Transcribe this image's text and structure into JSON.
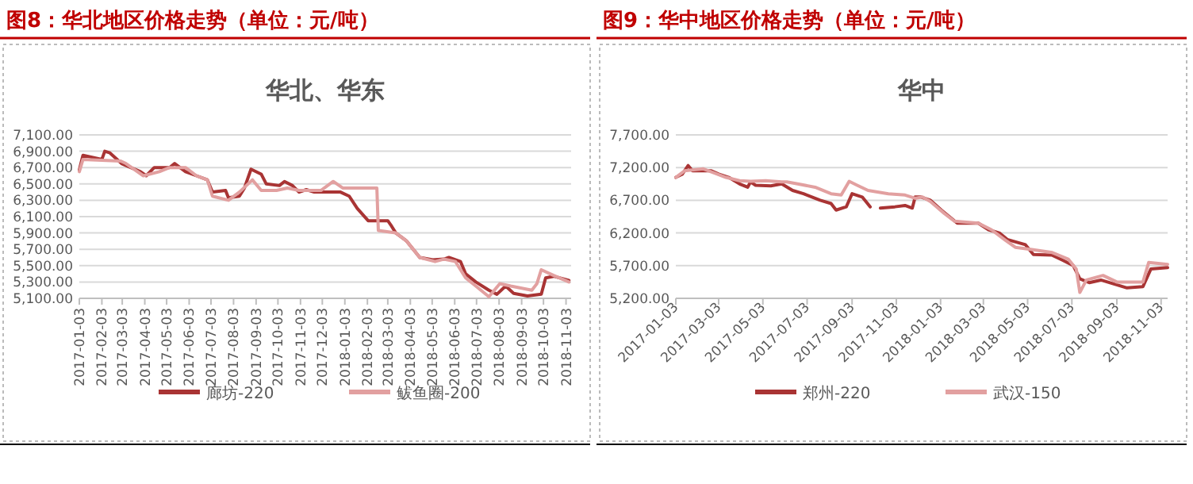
{
  "chart_data": [
    {
      "type": "line",
      "title": "图8：华北地区价格走势（单位：元/吨）",
      "subtitle": "华北、华东",
      "legend": "bottom",
      "grid": "y",
      "xlim": [
        "2017-01-03",
        "2018-11-10"
      ],
      "ylim": [
        5100,
        7100
      ],
      "yticks": [
        {
          "value": 5100,
          "label": "5,100.00"
        },
        {
          "value": 5300,
          "label": "5,300.00"
        },
        {
          "value": 5500,
          "label": "5,500.00"
        },
        {
          "value": 5700,
          "label": "5,700.00"
        },
        {
          "value": 5900,
          "label": "5,900.00"
        },
        {
          "value": 6100,
          "label": "6,100.00"
        },
        {
          "value": 6300,
          "label": "6,300.00"
        },
        {
          "value": 6500,
          "label": "6,500.00"
        },
        {
          "value": 6700,
          "label": "6,700.00"
        },
        {
          "value": 6900,
          "label": "6,900.00"
        },
        {
          "value": 7100,
          "label": "7,100.00"
        }
      ],
      "xticks": [
        "2017-01-03",
        "2017-02-03",
        "2017-03-03",
        "2017-04-03",
        "2017-05-03",
        "2017-06-03",
        "2017-07-03",
        "2017-08-03",
        "2017-09-03",
        "2017-10-03",
        "2017-11-03",
        "2017-12-03",
        "2018-01-03",
        "2018-02-03",
        "2018-03-03",
        "2018-04-03",
        "2018-05-03",
        "2018-06-03",
        "2018-07-03",
        "2018-08-03",
        "2018-09-03",
        "2018-10-03",
        "2018-11-03"
      ],
      "series": [
        {
          "name": "廊坊-220",
          "color": "#a93434",
          "x": [
            "2017-01-03",
            "2017-01-08",
            "2017-02-03",
            "2017-02-07",
            "2017-02-14",
            "2017-03-02",
            "2017-03-28",
            "2017-04-05",
            "2017-04-16",
            "2017-05-07",
            "2017-05-14",
            "2017-05-29",
            "2017-06-13",
            "2017-06-28",
            "2017-07-05",
            "2017-07-23",
            "2017-07-27",
            "2017-08-11",
            "2017-08-18",
            "2017-08-27",
            "2017-09-10",
            "2017-09-17",
            "2017-10-05",
            "2017-10-12",
            "2017-10-23",
            "2017-11-01",
            "2017-11-11",
            "2017-11-22",
            "2017-12-28",
            "2018-01-09",
            "2018-01-20",
            "2018-02-04",
            "2018-03-03",
            "2018-03-07",
            "2018-03-14",
            "2018-03-29",
            "2018-04-16",
            "2018-05-04",
            "2018-05-19",
            "2018-05-26",
            "2018-06-11",
            "2018-06-18",
            "2018-07-02",
            "2018-07-20",
            "2018-07-31",
            "2018-08-12",
            "2018-08-23",
            "2018-09-11",
            "2018-09-30",
            "2018-10-06",
            "2018-10-17",
            "2018-11-03",
            "2018-11-07"
          ],
          "values": [
            6670,
            6850,
            6800,
            6900,
            6880,
            6750,
            6650,
            6600,
            6700,
            6700,
            6750,
            6650,
            6600,
            6550,
            6400,
            6420,
            6330,
            6350,
            6450,
            6680,
            6620,
            6500,
            6480,
            6530,
            6480,
            6400,
            6430,
            6400,
            6400,
            6350,
            6200,
            6050,
            6050,
            6000,
            5900,
            5800,
            5600,
            5570,
            5580,
            5600,
            5550,
            5400,
            5300,
            5200,
            5150,
            5250,
            5160,
            5130,
            5150,
            5350,
            5370,
            5330,
            5320
          ]
        },
        {
          "name": "鲅鱼圈-200",
          "color": "#e2a0a0",
          "x": [
            "2017-01-03",
            "2017-01-08",
            "2017-03-01",
            "2017-03-08",
            "2017-04-01",
            "2017-04-23",
            "2017-05-07",
            "2017-05-29",
            "2017-06-13",
            "2017-06-28",
            "2017-07-05",
            "2017-07-27",
            "2017-08-11",
            "2017-08-29",
            "2017-09-10",
            "2017-10-01",
            "2017-10-16",
            "2017-11-01",
            "2017-12-01",
            "2017-12-18",
            "2017-12-31",
            "2018-02-16",
            "2018-02-18",
            "2018-03-14",
            "2018-03-29",
            "2018-04-16",
            "2018-05-07",
            "2018-05-19",
            "2018-06-04",
            "2018-06-18",
            "2018-07-02",
            "2018-07-20",
            "2018-08-04",
            "2018-08-19",
            "2018-09-17",
            "2018-09-24",
            "2018-09-30",
            "2018-10-17",
            "2018-11-07"
          ],
          "values": [
            6650,
            6800,
            6780,
            6750,
            6600,
            6650,
            6700,
            6700,
            6600,
            6550,
            6350,
            6300,
            6400,
            6550,
            6420,
            6420,
            6450,
            6420,
            6420,
            6530,
            6450,
            6450,
            5930,
            5900,
            5800,
            5600,
            5550,
            5580,
            5550,
            5350,
            5250,
            5120,
            5280,
            5250,
            5200,
            5280,
            5450,
            5380,
            5300
          ]
        }
      ]
    },
    {
      "type": "line",
      "title": "图9：华中地区价格走势（单位：元/吨）",
      "subtitle": "华中",
      "legend": "bottom",
      "grid": "y",
      "xlim": [
        "2017-01-03",
        "2018-11-12"
      ],
      "ylim": [
        5200,
        7700
      ],
      "yticks": [
        {
          "value": 5200,
          "label": "5,200.00"
        },
        {
          "value": 5700,
          "label": "5,700.00"
        },
        {
          "value": 6200,
          "label": "6,200.00"
        },
        {
          "value": 6700,
          "label": "6,700.00"
        },
        {
          "value": 7200,
          "label": "7,200.00"
        },
        {
          "value": 7700,
          "label": "7,700.00"
        }
      ],
      "xticks": [
        "2017-01-03",
        "2017-03-03",
        "2017-05-03",
        "2017-07-03",
        "2017-09-03",
        "2017-11-03",
        "2018-01-03",
        "2018-03-03",
        "2018-05-03",
        "2018-07-03",
        "2018-09-03",
        "2018-11-03"
      ],
      "series": [
        {
          "name": "郑州-220",
          "color": "#a93434",
          "x": [
            "2017-01-03",
            "2017-01-12",
            "2017-01-20",
            "2017-01-26",
            "2017-02-21",
            "2017-03-03",
            "2017-03-17",
            "2017-04-01",
            "2017-04-12",
            "2017-04-16",
            "2017-04-23",
            "2017-05-14",
            "2017-05-29",
            "2017-06-13",
            "2017-06-28",
            "2017-07-21",
            "2017-08-05",
            "2017-08-12",
            "2017-08-26",
            "2017-09-03",
            "2017-09-17",
            "2017-09-28",
            "2017-10-05",
            "2017-10-12",
            "2017-11-01",
            "2017-11-15",
            "2017-11-25",
            "2017-11-29",
            "2017-12-07",
            "2017-12-20",
            "2018-01-04",
            "2018-01-15",
            "2018-01-26",
            "2018-02-24",
            "2018-03-10",
            "2018-03-25",
            "2018-04-05",
            "2018-04-30",
            "2018-05-11",
            "2018-06-06",
            "2018-06-21",
            "2018-07-05",
            "2018-07-14",
            "2018-07-27",
            "2018-08-12",
            "2018-08-30",
            "2018-09-17",
            "2018-10-09",
            "2018-10-20",
            "2018-11-12"
          ],
          "values": [
            7050,
            7100,
            7230,
            7150,
            7150,
            7100,
            7050,
            6950,
            6900,
            6980,
            6930,
            6920,
            6950,
            6850,
            6800,
            6700,
            6650,
            6550,
            6600,
            6800,
            6750,
            6600,
            null,
            6580,
            6600,
            6620,
            6580,
            6750,
            6750,
            6700,
            6550,
            6450,
            6350,
            6350,
            6250,
            6200,
            6100,
            6020,
            5870,
            5860,
            5780,
            5700,
            5500,
            5440,
            5480,
            5420,
            5360,
            5380,
            5650,
            5670
          ]
        },
        {
          "name": "武汉-150",
          "color": "#e2a0a0",
          "x": [
            "2017-01-03",
            "2017-01-15",
            "2017-02-10",
            "2017-03-01",
            "2017-03-13",
            "2017-04-01",
            "2017-04-16",
            "2017-05-07",
            "2017-05-29",
            "2017-06-05",
            "2017-06-20",
            "2017-07-14",
            "2017-08-05",
            "2017-08-19",
            "2017-08-30",
            "2017-09-10",
            "2017-09-25",
            "2017-10-23",
            "2017-11-15",
            "2017-11-29",
            "2017-12-09",
            "2017-12-20",
            "2018-01-08",
            "2018-01-22",
            "2018-02-24",
            "2018-03-14",
            "2018-04-01",
            "2018-04-16",
            "2018-05-07",
            "2018-06-06",
            "2018-06-28",
            "2018-07-09",
            "2018-07-14",
            "2018-07-23",
            "2018-08-15",
            "2018-09-03",
            "2018-10-09",
            "2018-10-17",
            "2018-11-12"
          ],
          "values": [
            7050,
            7150,
            7180,
            7100,
            7050,
            7000,
            6990,
            7000,
            6980,
            6980,
            6950,
            6900,
            6800,
            6780,
            6990,
            6930,
            6850,
            6800,
            6780,
            6730,
            6750,
            6680,
            6500,
            6380,
            6350,
            6250,
            6100,
            5980,
            5950,
            5900,
            5800,
            5650,
            5290,
            5480,
            5550,
            5450,
            5450,
            5750,
            5720
          ]
        }
      ]
    }
  ]
}
